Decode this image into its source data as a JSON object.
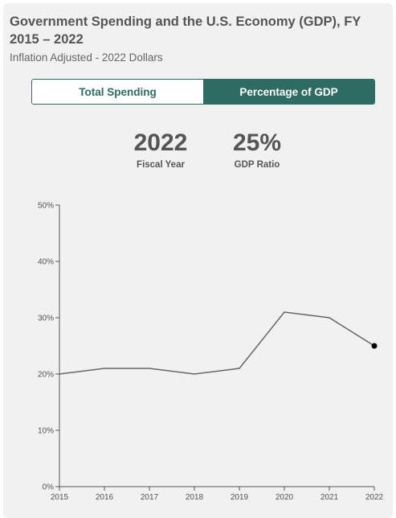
{
  "header": {
    "title": "Government Spending and the U.S. Economy (GDP), FY 2015 – 2022",
    "subtitle": "Inflation Adjusted - 2022 Dollars"
  },
  "toggle": {
    "options": [
      "Total Spending",
      "Percentage of GDP"
    ],
    "selected": "Percentage of GDP"
  },
  "stats": {
    "year_value": "2022",
    "year_label": "Fiscal Year",
    "ratio_value": "25%",
    "ratio_label": "GDP Ratio"
  },
  "colors": {
    "accent": "#2e6b63",
    "line": "#666666",
    "highlight_point": "#000000"
  },
  "chart_data": {
    "type": "line",
    "x": [
      2015,
      2016,
      2017,
      2018,
      2019,
      2020,
      2021,
      2022
    ],
    "series": [
      {
        "values": [
          20,
          21,
          21,
          20,
          21,
          31,
          30,
          25
        ]
      }
    ],
    "xlabel": "",
    "ylabel": "",
    "ylim": [
      0,
      50
    ],
    "yticks": [
      "0%",
      "10%",
      "20%",
      "30%",
      "40%",
      "50%"
    ],
    "xticks": [
      "2015",
      "2016",
      "2017",
      "2018",
      "2019",
      "2020",
      "2021",
      "2022"
    ],
    "grid": false,
    "highlighted_x": 2022
  }
}
